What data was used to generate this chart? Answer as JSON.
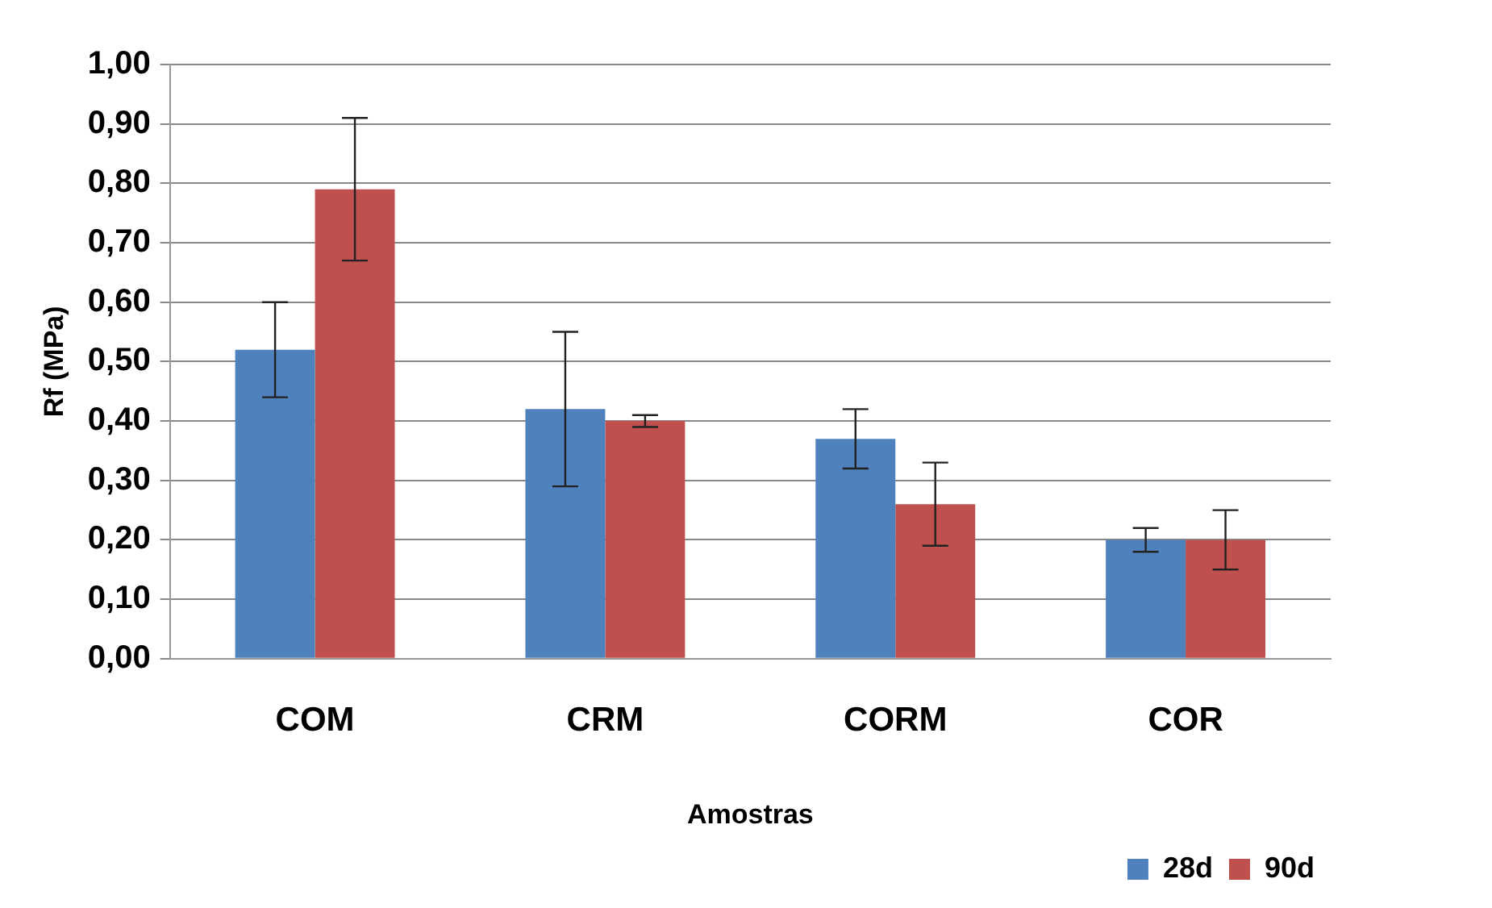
{
  "chart_data": {
    "type": "bar",
    "xlabel": "Amostras",
    "ylabel": "Rf (MPa)",
    "categories": [
      "COM",
      "CRM",
      "CORM",
      "COR"
    ],
    "series": [
      {
        "name": "28d",
        "color": "#4f81bd",
        "values": [
          0.52,
          0.42,
          0.37,
          0.2
        ],
        "errors": [
          0.08,
          0.13,
          0.05,
          0.02
        ]
      },
      {
        "name": "90d",
        "color": "#c0504d",
        "values": [
          0.79,
          0.4,
          0.26,
          0.2
        ],
        "errors": [
          0.12,
          0.01,
          0.07,
          0.05
        ]
      }
    ],
    "ylim": [
      0,
      1
    ],
    "yticks": [
      {
        "value": 0,
        "label": "0,00"
      },
      {
        "value": 0.1,
        "label": "0,10"
      },
      {
        "value": 0.2,
        "label": "0,20"
      },
      {
        "value": 0.3,
        "label": "0,30"
      },
      {
        "value": 0.4,
        "label": "0,40"
      },
      {
        "value": 0.5,
        "label": "0,50"
      },
      {
        "value": 0.6,
        "label": "0,60"
      },
      {
        "value": 0.7,
        "label": "0,70"
      },
      {
        "value": 0.8,
        "label": "0,80"
      },
      {
        "value": 0.9,
        "label": "0,90"
      },
      {
        "value": 1,
        "label": "1,00"
      }
    ],
    "grid": "y",
    "legend": "bottom right"
  }
}
